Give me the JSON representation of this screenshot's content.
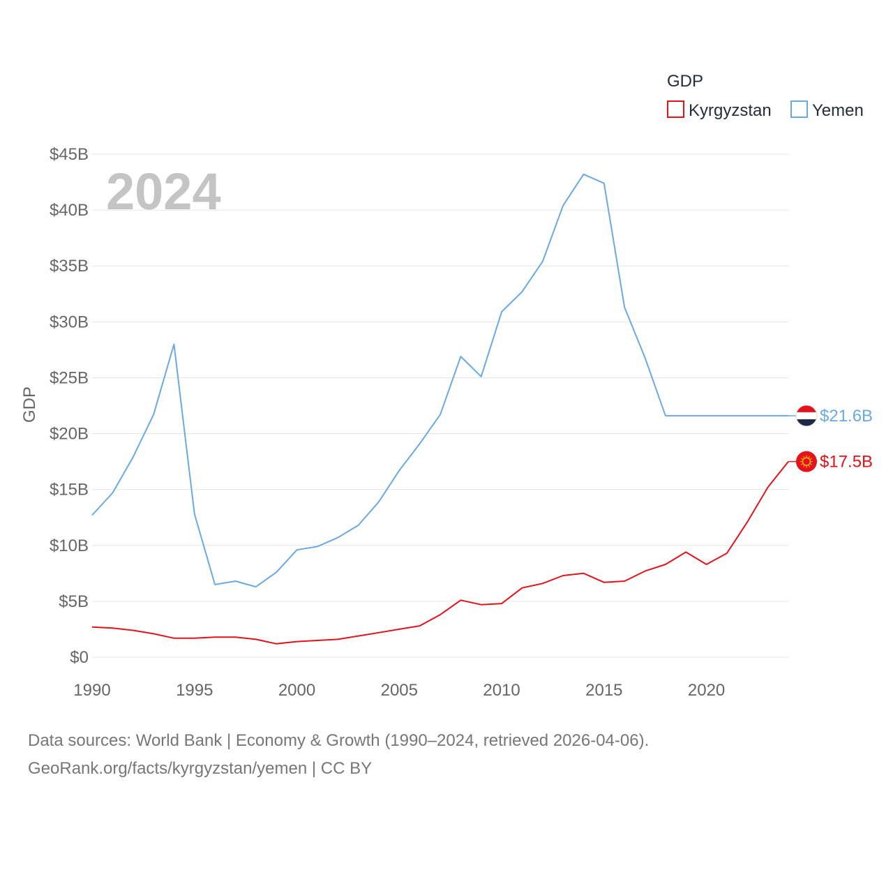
{
  "chart_data": {
    "type": "line",
    "year_label": "2024",
    "ylabel": "GDP",
    "xlabel": "",
    "ylim": [
      0,
      45
    ],
    "xlim": [
      1990,
      2024
    ],
    "y_ticks": [
      {
        "value": 0,
        "label": "$0"
      },
      {
        "value": 5,
        "label": "$5B"
      },
      {
        "value": 10,
        "label": "$10B"
      },
      {
        "value": 15,
        "label": "$15B"
      },
      {
        "value": 20,
        "label": "$20B"
      },
      {
        "value": 25,
        "label": "$25B"
      },
      {
        "value": 30,
        "label": "$30B"
      },
      {
        "value": 35,
        "label": "$35B"
      },
      {
        "value": 40,
        "label": "$40B"
      },
      {
        "value": 45,
        "label": "$45B"
      }
    ],
    "x_ticks": [
      {
        "value": 1990,
        "label": "1990"
      },
      {
        "value": 1995,
        "label": "1995"
      },
      {
        "value": 2000,
        "label": "2000"
      },
      {
        "value": 2005,
        "label": "2005"
      },
      {
        "value": 2010,
        "label": "2010"
      },
      {
        "value": 2015,
        "label": "2015"
      },
      {
        "value": 2020,
        "label": "2020"
      }
    ],
    "legend": {
      "title": "GDP",
      "position": "top-right"
    },
    "x": [
      1990,
      1991,
      1992,
      1993,
      1994,
      1995,
      1996,
      1997,
      1998,
      1999,
      2000,
      2001,
      2002,
      2003,
      2004,
      2005,
      2006,
      2007,
      2008,
      2009,
      2010,
      2011,
      2012,
      2013,
      2014,
      2015,
      2016,
      2017,
      2018,
      2019,
      2020,
      2021,
      2022,
      2023,
      2024
    ],
    "series": [
      {
        "name": "Kyrgyzstan",
        "color": "#e3121b",
        "end_label": "$17.5B",
        "flag_icon": "kyrgyzstan-flag-icon",
        "values": [
          2.7,
          2.6,
          2.4,
          2.1,
          1.7,
          1.7,
          1.8,
          1.8,
          1.6,
          1.2,
          1.4,
          1.5,
          1.6,
          1.9,
          2.2,
          2.5,
          2.8,
          3.8,
          5.1,
          4.7,
          4.8,
          6.2,
          6.6,
          7.3,
          7.5,
          6.7,
          6.8,
          7.7,
          8.3,
          9.4,
          8.3,
          9.3,
          12.1,
          15.2,
          17.5
        ]
      },
      {
        "name": "Yemen",
        "color": "#6aa9e4",
        "end_label": "$21.6B",
        "flag_icon": "yemen-flag-icon",
        "values": [
          12.7,
          14.7,
          17.9,
          21.7,
          28.0,
          12.8,
          6.5,
          6.8,
          6.3,
          7.6,
          9.6,
          9.9,
          10.7,
          11.8,
          13.9,
          16.7,
          19.1,
          21.7,
          26.9,
          25.1,
          30.9,
          32.7,
          35.4,
          40.4,
          43.2,
          42.4,
          31.3,
          26.8,
          21.6,
          21.6,
          21.6,
          21.6,
          21.6,
          21.6,
          21.6
        ]
      }
    ]
  },
  "footer": {
    "line1": "Data sources: World Bank | Economy & Growth (1990–2024, retrieved 2026-04-06).",
    "line2": "GeoRank.org/facts/kyrgyzstan/yemen | CC BY"
  }
}
